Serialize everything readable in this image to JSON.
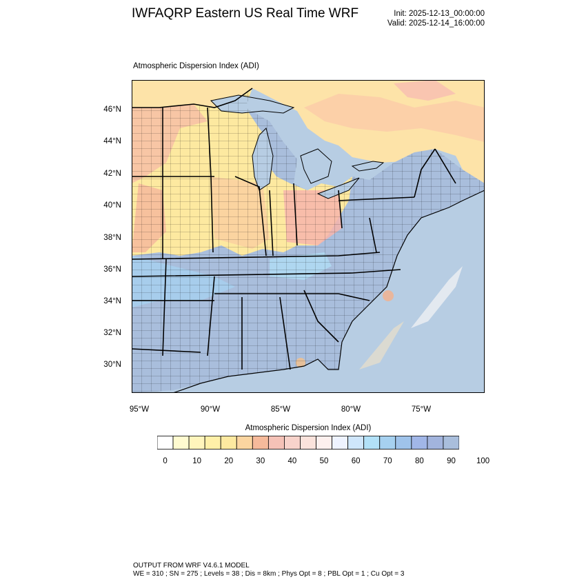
{
  "header": {
    "title": "IWFAQRP Eastern US Real Time WRF",
    "init": "Init: 2025-12-13_00:00:00",
    "valid": "Valid: 2025-12-14_16:00:00"
  },
  "map": {
    "subtitle": "Atmospheric Dispersion Index   (ADI)",
    "lat_labels": [
      "46°N",
      "44°N",
      "42°N",
      "40°N",
      "38°N",
      "36°N",
      "34°N",
      "32°N",
      "30°N"
    ],
    "lon_labels": [
      "95°W",
      "90°W",
      "85°W",
      "80°W",
      "75°W"
    ],
    "colors": {
      "ocean": "#b7cde3",
      "land_far": "#fde3a8",
      "counties": "#000000"
    }
  },
  "colorbar": {
    "title": "Atmospheric Dispersion Index  (ADI)",
    "colors": [
      "#ffffff",
      "#fffbd0",
      "#fff5bc",
      "#fff0a8",
      "#fde9a0",
      "#fbd5a0",
      "#f6ba9b",
      "#f5c2b7",
      "#f8d3cb",
      "#fbe3dc",
      "#fdf0ee",
      "#eef3ff",
      "#cfe6fb",
      "#b2e1f8",
      "#a6d1f0",
      "#9fc3ea",
      "#a1b6e7",
      "#a2b4dd",
      "#a9bedc"
    ],
    "labels": [
      "0",
      "10",
      "20",
      "30",
      "40",
      "50",
      "60",
      "70",
      "80",
      "90",
      "100"
    ]
  },
  "footer": {
    "line1": "OUTPUT FROM WRF V4.6.1 MODEL",
    "line2": "WE = 310 ; SN = 275 ; Levels = 38 ; Dis = 8km ; Phys Opt = 8 ; PBL Opt = 1 ; Cu Opt = 3"
  }
}
